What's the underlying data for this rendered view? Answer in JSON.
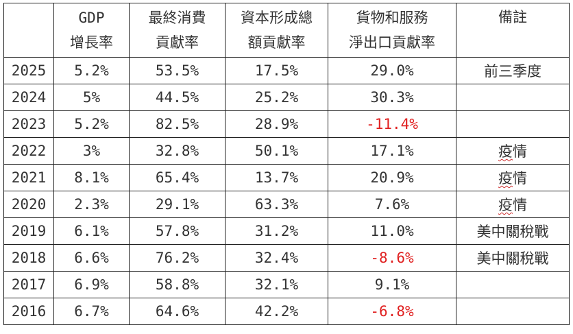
{
  "headers": [
    {
      "line1": "",
      "line2": ""
    },
    {
      "line1": "GDP",
      "line2": "增長率"
    },
    {
      "line1": "最終消費",
      "line2": "貢獻率"
    },
    {
      "line1": "資本形成總",
      "line2": "額貢獻率"
    },
    {
      "line1": "貨物和服務",
      "line2": "淨出口貢獻率"
    },
    {
      "line1": "備註",
      "line2": ""
    }
  ],
  "rows": [
    {
      "year": "2025",
      "gdp": "5.2%",
      "consumption": "53.5%",
      "capital": "17.5%",
      "net_exports": "29.0%",
      "note": "前三季度"
    },
    {
      "year": "2024",
      "gdp": "5%",
      "consumption": "44.5%",
      "capital": "25.2%",
      "net_exports": "30.3%",
      "note": ""
    },
    {
      "year": "2023",
      "gdp": "5.2%",
      "consumption": "82.5%",
      "capital": "28.9%",
      "net_exports": "-11.4%",
      "note": ""
    },
    {
      "year": "2022",
      "gdp": "3%",
      "consumption": "32.8%",
      "capital": "50.1%",
      "net_exports": "17.1%",
      "note": "疫情"
    },
    {
      "year": "2021",
      "gdp": "8.1%",
      "consumption": "65.4%",
      "capital": "13.7%",
      "net_exports": "20.9%",
      "note": "疫情"
    },
    {
      "year": "2020",
      "gdp": "2.3%",
      "consumption": "29.1%",
      "capital": "63.3%",
      "net_exports": "7.6%",
      "note": "疫情"
    },
    {
      "year": "2019",
      "gdp": "6.1%",
      "consumption": "57.8%",
      "capital": "31.2%",
      "net_exports": "11.0%",
      "note": "美中關稅戰"
    },
    {
      "year": "2018",
      "gdp": "6.6%",
      "consumption": "76.2%",
      "capital": "32.4%",
      "net_exports": "-8.6%",
      "note": "美中關稅戰"
    },
    {
      "year": "2017",
      "gdp": "6.9%",
      "consumption": "58.8%",
      "capital": "32.1%",
      "net_exports": "9.1%",
      "note": ""
    },
    {
      "year": "2016",
      "gdp": "6.7%",
      "consumption": "64.6%",
      "capital": "42.2%",
      "net_exports": "-6.8%",
      "note": ""
    }
  ],
  "colors": {
    "negative": "#e02020",
    "text": "#333333",
    "border": "#222222"
  }
}
